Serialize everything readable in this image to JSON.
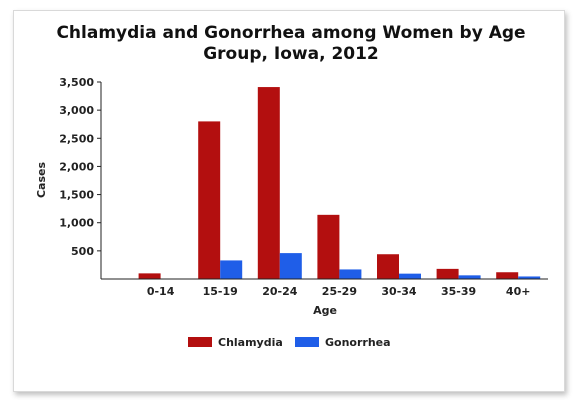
{
  "chart_data": {
    "type": "bar",
    "title_lines": [
      "Chlamydia and Gonorrhea among Women by Age",
      "Group, Iowa, 2012"
    ],
    "xlabel": "Age",
    "ylabel": "Cases",
    "categories": [
      "0-14",
      "15-19",
      "20-24",
      "25-29",
      "30-34",
      "35-39",
      "40+"
    ],
    "series": [
      {
        "name": "Chlamydia",
        "color": "#b30f0f",
        "values": [
          100,
          2800,
          3410,
          1140,
          440,
          180,
          120
        ]
      },
      {
        "name": "Gonorrhea",
        "color": "#1f5ee8",
        "values": [
          5,
          330,
          460,
          170,
          95,
          65,
          45
        ]
      }
    ],
    "ylim": [
      0,
      3500
    ],
    "yticks": [
      500,
      1000,
      1500,
      2000,
      2500,
      3000,
      3500
    ],
    "ytick_labels": [
      "500",
      "1,000",
      "1,500",
      "2,000",
      "2,500",
      "3,000",
      "3,500"
    ],
    "grid": false,
    "legend_position": "bottom"
  }
}
